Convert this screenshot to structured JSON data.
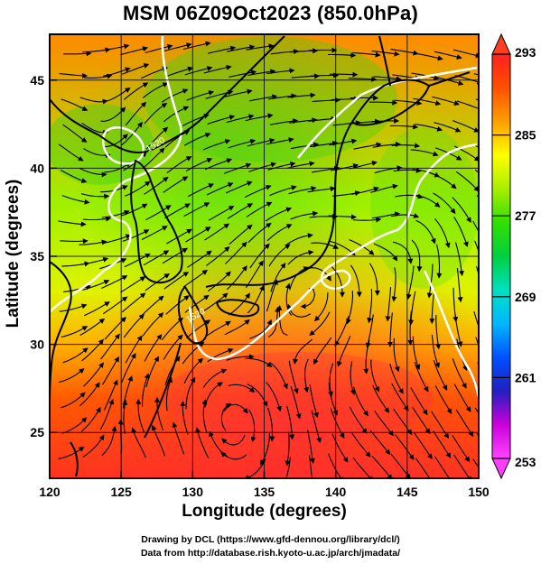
{
  "figure": {
    "title": "MSM 06Z09Oct2023 (850.0hPa)",
    "xlabel": "Longitude (degrees)",
    "ylabel": "Latitude  (degrees)",
    "credit_line1": "Drawing by DCL (https://www.gfd-dennou.org/library/dcl/)",
    "credit_line2": "Data from http://database.rish.kyoto-u.ac.jp/arch/jmadata/"
  },
  "map": {
    "xlim": [
      120,
      150
    ],
    "ylim": [
      22.4,
      47.6
    ],
    "xticks": [
      {
        "value": 120,
        "label": "120"
      },
      {
        "value": 125,
        "label": "125"
      },
      {
        "value": 130,
        "label": "130"
      },
      {
        "value": 135,
        "label": "135"
      },
      {
        "value": 140,
        "label": "140"
      },
      {
        "value": 145,
        "label": "145"
      },
      {
        "value": 150,
        "label": "150"
      }
    ],
    "yticks": [
      {
        "value": 25,
        "label": "25"
      },
      {
        "value": 30,
        "label": "30"
      },
      {
        "value": 35,
        "label": "35"
      },
      {
        "value": 40,
        "label": "40"
      },
      {
        "value": 45,
        "label": "45"
      }
    ],
    "grid": true,
    "coastline_color": "#000000",
    "streamline_color": "#000000",
    "contour_color": "#ffffff",
    "contour_labels": [
      {
        "text": "1520",
        "lon": 127.5,
        "lat": 41.2
      },
      {
        "text": "1520",
        "lon": 130.3,
        "lat": 31.5
      }
    ]
  },
  "colorbar": {
    "field": "temperature",
    "min": 253,
    "max": 293,
    "tick_labels": [
      "293",
      "285",
      "277",
      "269",
      "261",
      "253"
    ],
    "colors": [
      "#ff44ff",
      "#cc00dd",
      "#2020c0",
      "#0050ff",
      "#00b8ff",
      "#00e0c0",
      "#00d040",
      "#30e000",
      "#a8ef00",
      "#ffff00",
      "#ffa000",
      "#ff5000",
      "#ff2020"
    ]
  },
  "chart_data": {
    "type": "heatmap",
    "title": "MSM 06Z09Oct2023 (850.0hPa)",
    "xlabel": "Longitude (degrees)",
    "ylabel": "Latitude  (degrees)",
    "xlim": [
      120,
      150
    ],
    "ylim": [
      22.4,
      47.6
    ],
    "colorbar_range": [
      253,
      293
    ],
    "colorbar_ticks": [
      253,
      261,
      269,
      277,
      285,
      293
    ],
    "value_samples": [
      {
        "lon": 122,
        "lat": 46,
        "value": 282
      },
      {
        "lon": 135,
        "lat": 46,
        "value": 279
      },
      {
        "lon": 148,
        "lat": 46,
        "value": 280
      },
      {
        "lon": 124,
        "lat": 40,
        "value": 279
      },
      {
        "lon": 132,
        "lat": 38,
        "value": 281
      },
      {
        "lon": 146,
        "lat": 40,
        "value": 282
      },
      {
        "lon": 122,
        "lat": 32,
        "value": 284
      },
      {
        "lon": 138,
        "lat": 30,
        "value": 286
      },
      {
        "lon": 148,
        "lat": 30,
        "value": 285
      },
      {
        "lon": 125,
        "lat": 25,
        "value": 289
      },
      {
        "lon": 137,
        "lat": 25,
        "value": 291
      },
      {
        "lon": 148,
        "lat": 24,
        "value": 289
      }
    ]
  }
}
